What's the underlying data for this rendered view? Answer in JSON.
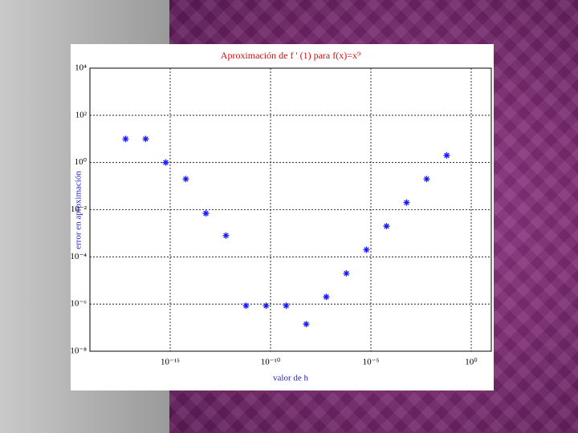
{
  "chart_data": {
    "type": "scatter",
    "title": "Aproximación de f ' (1) para f(x)=x⁹",
    "x_label": "valor de h",
    "y_label": "error en aproximación",
    "x_log": true,
    "y_log": true,
    "grid": true,
    "color": "#1a1aff",
    "marker": "asterisk",
    "xlim": [
      1e-19,
      10
    ],
    "ylim": [
      1e-08,
      10000
    ],
    "xticks": [
      {
        "value": 1e-15,
        "label": "10⁻¹⁵"
      },
      {
        "value": 1e-10,
        "label": "10⁻¹⁰"
      },
      {
        "value": 1e-05,
        "label": "10⁻⁵"
      },
      {
        "value": 1,
        "label": "10⁰"
      }
    ],
    "yticks": [
      {
        "value": 1e-08,
        "label": "10⁻⁸"
      },
      {
        "value": 1e-06,
        "label": "10⁻⁶"
      },
      {
        "value": 0.0001,
        "label": "10⁻⁴"
      },
      {
        "value": 0.01,
        "label": "10⁻²"
      },
      {
        "value": 1,
        "label": "10⁰"
      },
      {
        "value": 100,
        "label": "10²"
      },
      {
        "value": 10000,
        "label": "10⁴"
      }
    ],
    "x": [
      6e-18,
      6e-17,
      6e-16,
      6e-15,
      6e-14,
      6e-13,
      6e-12,
      6e-11,
      6e-10,
      6e-09,
      6e-08,
      6e-07,
      6e-06,
      6e-05,
      0.0006,
      0.006,
      0.06
    ],
    "values": [
      10,
      10,
      1,
      0.2,
      0.007,
      0.0008,
      8.5e-07,
      8.5e-07,
      8.5e-07,
      1.4e-07,
      2e-06,
      2e-05,
      0.0002,
      0.002,
      0.02,
      0.2,
      2
    ]
  }
}
